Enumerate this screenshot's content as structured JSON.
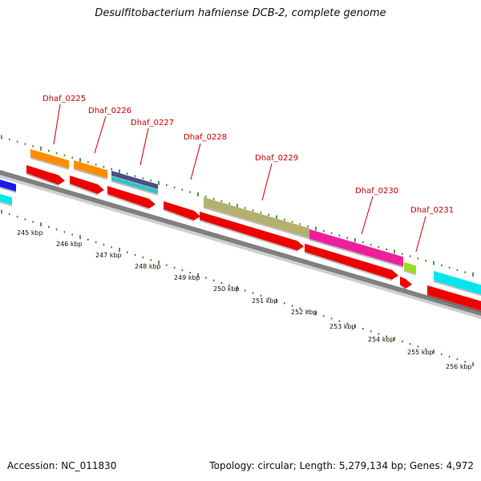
{
  "header": {
    "title": "Desulfitobacterium hafniense DCB-2, complete genome"
  },
  "footer": {
    "accession": "Accession: NC_011830",
    "summary": "Topology: circular; Length: 5,279,134 bp; Genes: 4,972"
  },
  "map": {
    "kbp_labels": [
      "245 kbp",
      "246 kbp",
      "247 kbp",
      "248 kbp",
      "249 kbp",
      "250 kbp",
      "251 kbp",
      "252 kbp",
      "253 kbp",
      "254 kbp",
      "255 kbp",
      "256 kbp"
    ],
    "gene_labels": [
      "Dhaf_0225",
      "Dhaf_0226",
      "Dhaf_0227",
      "Dhaf_0228",
      "Dhaf_0229",
      "Dhaf_0230",
      "Dhaf_0231"
    ],
    "colors": {
      "backbone": "#808080",
      "ticks": "#2e7d1a",
      "cds": "#ee0000",
      "label": "#cc0000",
      "orange": "#ff8c00",
      "navy": "#4a4f86",
      "teal": "#2ec4c4",
      "olive": "#b5b070",
      "magenta": "#ee1f9c",
      "lime": "#9bdc20",
      "blue": "#1a1aee",
      "cyan": "#00e5ee"
    }
  }
}
